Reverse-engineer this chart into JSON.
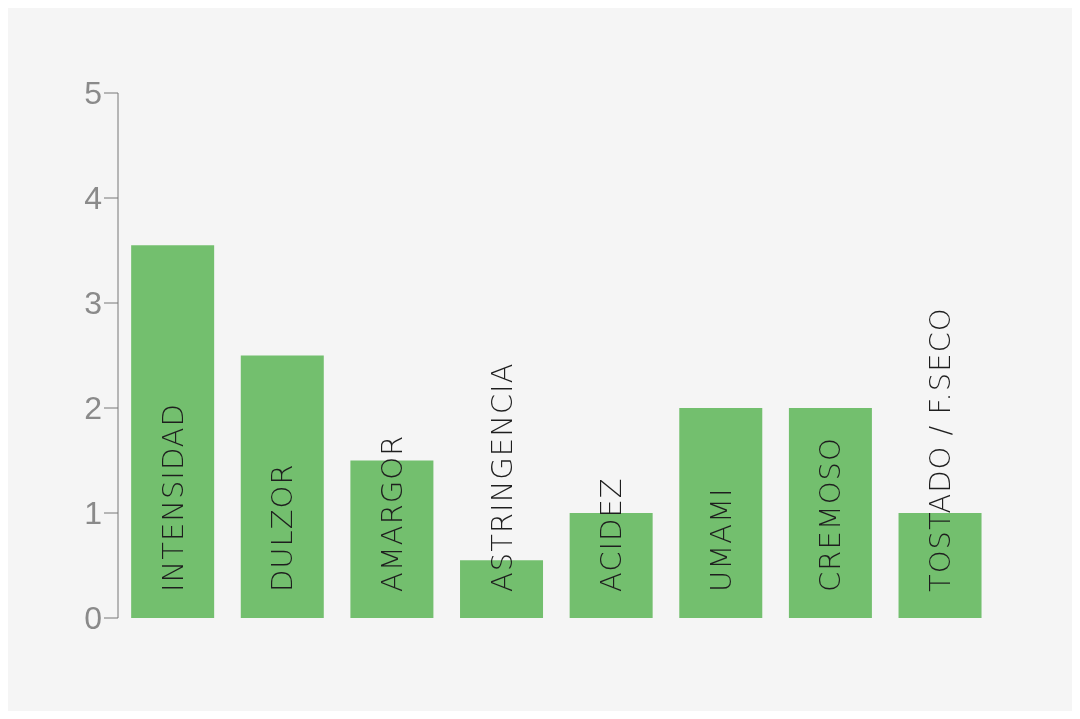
{
  "chart_data": {
    "type": "bar",
    "categories": [
      "INTENSIDAD",
      "DULZOR",
      "AMARGOR",
      "ASTRINGENCIA",
      "ACIDEZ",
      "UMAMI",
      "CREMOSO",
      "TOSTADO / F.SECO"
    ],
    "values": [
      3.55,
      2.5,
      1.5,
      0.55,
      1,
      2,
      2,
      1
    ],
    "color": "#73bf6e",
    "ylim": [
      0,
      5
    ],
    "yticks": [
      0,
      1,
      2,
      3,
      4,
      5
    ],
    "grid": false
  }
}
